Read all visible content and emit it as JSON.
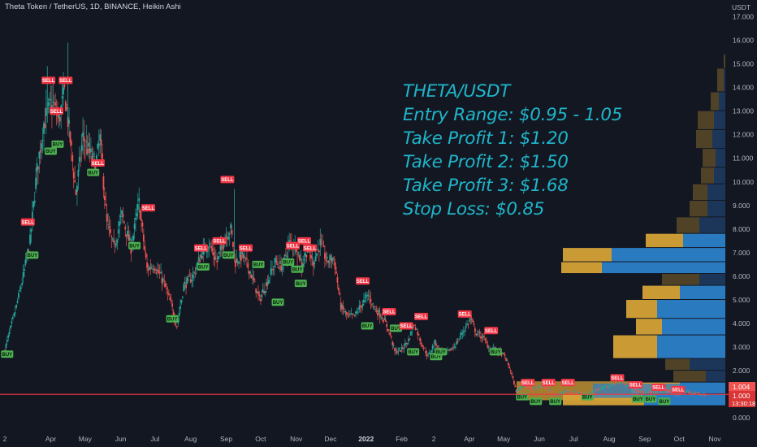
{
  "header": {
    "symbol_line": "Theta Token / TetherUS, 1D, BINANCE, Heikin Ashi",
    "currency_label": "USDT"
  },
  "annotation": {
    "lines": [
      "THETA/USDT",
      "Entry Range: $0.95 - 1.05",
      "Take Profit 1: $1.20",
      "Take Profit 2: $1.50",
      "Take Profit 3: $1.68",
      "Stop Loss: $0.85"
    ],
    "color": "#1fb5c9"
  },
  "price_badges": {
    "current_price": "1.004",
    "line_price": "1.000",
    "countdown": "13:30:18"
  },
  "chart_data": {
    "type": "candlestick",
    "title": "Theta Token / TetherUS, 1D, BINANCE, Heikin Ashi",
    "ylim": [
      -0.3,
      17.6
    ],
    "y_ticks": [
      0,
      1,
      2,
      3,
      4,
      5,
      6,
      7,
      8,
      9,
      10,
      11,
      12,
      13,
      14,
      15,
      16,
      17
    ],
    "y_tick_labels": [
      "0.000",
      "1.000",
      "2.000",
      "3.000",
      "4.000",
      "5.000",
      "6.000",
      "7.000",
      "8.000",
      "9.000",
      "10.000",
      "11.000",
      "12.000",
      "13.000",
      "14.000",
      "15.000",
      "16.000",
      "17.000"
    ],
    "x_range": [
      "2021-02-20",
      "2022-11-15"
    ],
    "x_labels": [
      {
        "label": "2",
        "date": "2021-02-20"
      },
      {
        "label": "Apr",
        "date": "2021-04-01"
      },
      {
        "label": "May",
        "date": "2021-05-01"
      },
      {
        "label": "Jun",
        "date": "2021-06-01"
      },
      {
        "label": "Jul",
        "date": "2021-07-01"
      },
      {
        "label": "Aug",
        "date": "2021-08-01"
      },
      {
        "label": "Sep",
        "date": "2021-09-01"
      },
      {
        "label": "Oct",
        "date": "2021-10-01"
      },
      {
        "label": "Nov",
        "date": "2021-11-01"
      },
      {
        "label": "Dec",
        "date": "2021-12-01"
      },
      {
        "label": "2022",
        "date": "2022-01-01"
      },
      {
        "label": "Feb",
        "date": "2022-02-01"
      },
      {
        "label": "2",
        "date": "2022-03-01"
      },
      {
        "label": "Apr",
        "date": "2022-04-01"
      },
      {
        "label": "May",
        "date": "2022-05-01"
      },
      {
        "label": "Jun",
        "date": "2022-06-01"
      },
      {
        "label": "Jul",
        "date": "2022-07-01"
      },
      {
        "label": "Aug",
        "date": "2022-08-01"
      },
      {
        "label": "Sep",
        "date": "2022-09-01"
      },
      {
        "label": "Oct",
        "date": "2022-10-01"
      },
      {
        "label": "Nov",
        "date": "2022-11-01"
      }
    ],
    "price_path": [
      [
        "2021-02-20",
        2.9
      ],
      [
        "2021-03-01",
        4.5
      ],
      [
        "2021-03-08",
        6.0
      ],
      [
        "2021-03-14",
        7.5
      ],
      [
        "2021-03-20",
        10.5
      ],
      [
        "2021-03-26",
        12.5
      ],
      [
        "2021-04-02",
        13.4
      ],
      [
        "2021-04-08",
        12.6
      ],
      [
        "2021-04-13",
        13.8
      ],
      [
        "2021-04-17",
        12.2
      ],
      [
        "2021-04-23",
        9.5
      ],
      [
        "2021-04-29",
        11.9
      ],
      [
        "2021-05-05",
        11.2
      ],
      [
        "2021-05-10",
        10.7
      ],
      [
        "2021-05-14",
        11.8
      ],
      [
        "2021-05-20",
        8.2
      ],
      [
        "2021-05-26",
        7.2
      ],
      [
        "2021-06-02",
        8.6
      ],
      [
        "2021-06-10",
        7.2
      ],
      [
        "2021-06-17",
        9.1
      ],
      [
        "2021-06-24",
        6.3
      ],
      [
        "2021-06-30",
        6.5
      ],
      [
        "2021-07-08",
        5.8
      ],
      [
        "2021-07-15",
        4.8
      ],
      [
        "2021-07-20",
        3.9
      ],
      [
        "2021-07-26",
        5.6
      ],
      [
        "2021-08-03",
        6.0
      ],
      [
        "2021-08-10",
        6.9
      ],
      [
        "2021-08-17",
        7.4
      ],
      [
        "2021-08-24",
        6.6
      ],
      [
        "2021-08-31",
        7.7
      ],
      [
        "2021-09-05",
        8.0
      ],
      [
        "2021-09-09",
        6.6
      ],
      [
        "2021-09-15",
        6.9
      ],
      [
        "2021-09-22",
        6.2
      ],
      [
        "2021-09-30",
        5.0
      ],
      [
        "2021-10-07",
        5.8
      ],
      [
        "2021-10-14",
        6.6
      ],
      [
        "2021-10-20",
        6.4
      ],
      [
        "2021-10-26",
        7.4
      ],
      [
        "2021-11-01",
        7.3
      ],
      [
        "2021-11-06",
        6.5
      ],
      [
        "2021-11-11",
        7.2
      ],
      [
        "2021-11-16",
        6.6
      ],
      [
        "2021-11-22",
        7.4
      ],
      [
        "2021-11-28",
        6.6
      ],
      [
        "2021-12-04",
        6.8
      ],
      [
        "2021-12-10",
        4.7
      ],
      [
        "2021-12-16",
        4.3
      ],
      [
        "2021-12-22",
        4.3
      ],
      [
        "2021-12-28",
        4.8
      ],
      [
        "2022-01-03",
        5.2
      ],
      [
        "2022-01-09",
        4.6
      ],
      [
        "2022-01-15",
        4.3
      ],
      [
        "2022-01-21",
        3.7
      ],
      [
        "2022-01-26",
        2.8
      ],
      [
        "2022-02-01",
        2.9
      ],
      [
        "2022-02-07",
        3.3
      ],
      [
        "2022-02-12",
        4.0
      ],
      [
        "2022-02-18",
        3.2
      ],
      [
        "2022-02-24",
        2.6
      ],
      [
        "2022-03-02",
        3.2
      ],
      [
        "2022-03-08",
        2.8
      ],
      [
        "2022-03-14",
        2.8
      ],
      [
        "2022-03-20",
        3.1
      ],
      [
        "2022-03-27",
        3.7
      ],
      [
        "2022-04-02",
        4.2
      ],
      [
        "2022-04-07",
        3.6
      ],
      [
        "2022-04-13",
        3.4
      ],
      [
        "2022-04-19",
        2.9
      ],
      [
        "2022-04-25",
        2.9
      ],
      [
        "2022-05-02",
        2.6
      ],
      [
        "2022-05-07",
        2.0
      ],
      [
        "2022-05-12",
        1.1
      ],
      [
        "2022-05-18",
        1.4
      ],
      [
        "2022-05-26",
        1.2
      ],
      [
        "2022-06-05",
        1.4
      ],
      [
        "2022-06-14",
        0.95
      ],
      [
        "2022-06-22",
        1.1
      ],
      [
        "2022-07-01",
        1.1
      ],
      [
        "2022-07-12",
        1.0
      ],
      [
        "2022-07-22",
        1.2
      ],
      [
        "2022-08-02",
        1.4
      ],
      [
        "2022-08-12",
        1.5
      ],
      [
        "2022-08-20",
        1.3
      ],
      [
        "2022-08-28",
        1.1
      ],
      [
        "2022-09-08",
        1.1
      ],
      [
        "2022-09-18",
        1.2
      ],
      [
        "2022-09-28",
        1.0
      ],
      [
        "2022-10-08",
        1.1
      ],
      [
        "2022-10-18",
        1.0
      ],
      [
        "2022-10-25",
        1.0
      ]
    ],
    "signals": [
      {
        "type": "BUY",
        "date": "2021-02-22",
        "price": 2.7
      },
      {
        "type": "SELL",
        "date": "2021-03-12",
        "price": 8.3
      },
      {
        "type": "BUY",
        "date": "2021-03-16",
        "price": 6.9
      },
      {
        "type": "SELL",
        "date": "2021-03-30",
        "price": 14.3
      },
      {
        "type": "SELL",
        "date": "2021-04-06",
        "price": 13.0
      },
      {
        "type": "BUY",
        "date": "2021-04-07",
        "price": 11.6
      },
      {
        "type": "BUY",
        "date": "2021-04-01",
        "price": 11.3
      },
      {
        "type": "SELL",
        "date": "2021-04-14",
        "price": 14.3
      },
      {
        "type": "BUY",
        "date": "2021-05-08",
        "price": 10.4
      },
      {
        "type": "SELL",
        "date": "2021-05-12",
        "price": 10.8
      },
      {
        "type": "BUY",
        "date": "2021-06-13",
        "price": 7.3
      },
      {
        "type": "SELL",
        "date": "2021-06-25",
        "price": 8.9
      },
      {
        "type": "BUY",
        "date": "2021-07-16",
        "price": 4.2
      },
      {
        "type": "SELL",
        "date": "2021-08-10",
        "price": 7.2
      },
      {
        "type": "BUY",
        "date": "2021-08-12",
        "price": 6.4
      },
      {
        "type": "SELL",
        "date": "2021-08-26",
        "price": 7.5
      },
      {
        "type": "SELL",
        "date": "2021-09-02",
        "price": 10.1
      },
      {
        "type": "BUY",
        "date": "2021-09-03",
        "price": 6.9
      },
      {
        "type": "SELL",
        "date": "2021-09-18",
        "price": 7.2
      },
      {
        "type": "BUY",
        "date": "2021-09-29",
        "price": 6.5
      },
      {
        "type": "BUY",
        "date": "2021-10-16",
        "price": 4.9
      },
      {
        "type": "BUY",
        "date": "2021-10-25",
        "price": 6.6
      },
      {
        "type": "SELL",
        "date": "2021-10-29",
        "price": 7.3
      },
      {
        "type": "BUY",
        "date": "2021-11-02",
        "price": 6.3
      },
      {
        "type": "BUY",
        "date": "2021-11-05",
        "price": 5.7
      },
      {
        "type": "SELL",
        "date": "2021-11-08",
        "price": 7.5
      },
      {
        "type": "SELL",
        "date": "2021-11-13",
        "price": 7.2
      },
      {
        "type": "SELL",
        "date": "2021-12-29",
        "price": 5.8
      },
      {
        "type": "BUY",
        "date": "2022-01-02",
        "price": 3.9
      },
      {
        "type": "SELL",
        "date": "2022-01-21",
        "price": 4.5
      },
      {
        "type": "BUY",
        "date": "2022-01-27",
        "price": 3.8
      },
      {
        "type": "SELL",
        "date": "2022-02-05",
        "price": 3.9
      },
      {
        "type": "BUY",
        "date": "2022-02-11",
        "price": 2.8
      },
      {
        "type": "SELL",
        "date": "2022-02-18",
        "price": 4.3
      },
      {
        "type": "BUY",
        "date": "2022-03-03",
        "price": 2.6
      },
      {
        "type": "BUY",
        "date": "2022-03-07",
        "price": 2.8
      },
      {
        "type": "SELL",
        "date": "2022-03-28",
        "price": 4.4
      },
      {
        "type": "SELL",
        "date": "2022-04-20",
        "price": 3.7
      },
      {
        "type": "BUY",
        "date": "2022-04-24",
        "price": 2.8
      },
      {
        "type": "BUY",
        "date": "2022-05-17",
        "price": 0.9
      },
      {
        "type": "SELL",
        "date": "2022-05-22",
        "price": 1.5
      },
      {
        "type": "BUY",
        "date": "2022-05-29",
        "price": 0.7
      },
      {
        "type": "SELL",
        "date": "2022-06-09",
        "price": 1.5
      },
      {
        "type": "BUY",
        "date": "2022-06-15",
        "price": 0.7
      },
      {
        "type": "SELL",
        "date": "2022-06-26",
        "price": 1.5
      },
      {
        "type": "BUY",
        "date": "2022-07-13",
        "price": 0.9
      },
      {
        "type": "SELL",
        "date": "2022-08-08",
        "price": 1.7
      },
      {
        "type": "SELL",
        "date": "2022-08-24",
        "price": 1.4
      },
      {
        "type": "BUY",
        "date": "2022-08-26",
        "price": 0.8
      },
      {
        "type": "BUY",
        "date": "2022-09-06",
        "price": 0.8
      },
      {
        "type": "SELL",
        "date": "2022-09-13",
        "price": 1.3
      },
      {
        "type": "BUY",
        "date": "2022-09-18",
        "price": 0.7
      },
      {
        "type": "SELL",
        "date": "2022-09-30",
        "price": 1.2
      }
    ],
    "volume_profile": {
      "x_scale_max": 100,
      "bins": [
        {
          "low": 0.5,
          "high": 1.0,
          "up": 50,
          "down": 50
        },
        {
          "low": 1.0,
          "high": 1.5,
          "up": 28,
          "down": 30
        },
        {
          "low": 1.5,
          "high": 2.0,
          "up": 12,
          "down": 20
        },
        {
          "low": 2.0,
          "high": 2.5,
          "up": 22,
          "down": 15
        },
        {
          "low": 2.5,
          "high": 3.5,
          "up": 42,
          "down": 27
        },
        {
          "low": 3.5,
          "high": 4.2,
          "up": 39,
          "down": 16
        },
        {
          "low": 4.2,
          "high": 5.0,
          "up": 42,
          "down": 19
        },
        {
          "low": 5.0,
          "high": 5.6,
          "up": 28,
          "down": 23
        },
        {
          "low": 5.6,
          "high": 6.1,
          "up": 16,
          "down": 23
        },
        {
          "low": 6.1,
          "high": 6.6,
          "up": 76,
          "down": 25
        },
        {
          "low": 6.6,
          "high": 7.2,
          "up": 70,
          "down": 30
        },
        {
          "low": 7.2,
          "high": 7.8,
          "up": 26,
          "down": 23
        },
        {
          "low": 7.8,
          "high": 8.5,
          "up": 16,
          "down": 14
        },
        {
          "low": 8.5,
          "high": 9.2,
          "up": 11,
          "down": 11
        },
        {
          "low": 9.2,
          "high": 9.9,
          "up": 11,
          "down": 9
        },
        {
          "low": 9.9,
          "high": 10.6,
          "up": 7,
          "down": 8
        },
        {
          "low": 10.6,
          "high": 11.4,
          "up": 6,
          "down": 8
        },
        {
          "low": 11.4,
          "high": 12.2,
          "up": 8,
          "down": 10
        },
        {
          "low": 12.2,
          "high": 13.0,
          "up": 7,
          "down": 10
        },
        {
          "low": 13.0,
          "high": 13.8,
          "up": 4,
          "down": 5
        },
        {
          "low": 13.8,
          "high": 14.8,
          "up": 1,
          "down": 4
        },
        {
          "low": 14.8,
          "high": 15.4,
          "up": 0,
          "down": 1
        }
      ]
    },
    "horizontal_lines": [
      {
        "price": 1.0,
        "color": "#f23645"
      }
    ],
    "colors": {
      "background": "#131722",
      "up_candle": "#26a69a",
      "down_candle": "#ef5350",
      "buy_label": "#4caf50",
      "sell_label": "#f23645",
      "profile_up_bright": "#2a7fc8",
      "profile_down_bright": "#d4a237",
      "profile_up_dim": "#1e3c64",
      "profile_down_dim": "#5a4a28",
      "price_line": "#f23645",
      "axis_text": "#b2b5be"
    },
    "grid": false,
    "legend": "none"
  }
}
